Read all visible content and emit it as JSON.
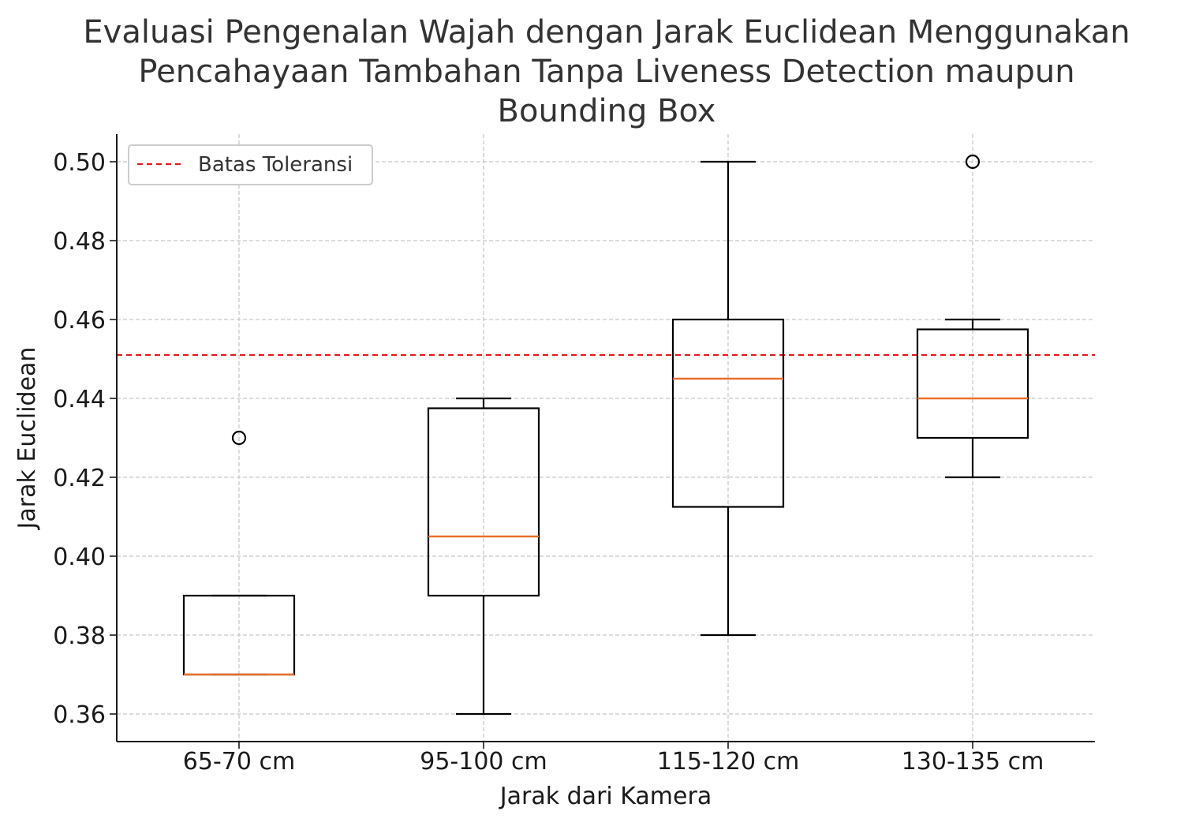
{
  "chart_data": {
    "type": "box",
    "title_lines": [
      "Evaluasi Pengenalan Wajah dengan Jarak Euclidean Menggunakan",
      "Pencahayaan Tambahan Tanpa Liveness Detection maupun",
      "Bounding Box"
    ],
    "xlabel": "Jarak dari Kamera",
    "ylabel": "Jarak Euclidean",
    "categories": [
      "65-70 cm",
      "95-100 cm",
      "115-120 cm",
      "130-135 cm"
    ],
    "boxes": [
      {
        "category": "65-70 cm",
        "whisker_low": 0.37,
        "q1": 0.37,
        "median": 0.37,
        "q3": 0.39,
        "whisker_high": 0.39,
        "outliers": [
          0.43
        ]
      },
      {
        "category": "95-100 cm",
        "whisker_low": 0.36,
        "q1": 0.39,
        "median": 0.405,
        "q3": 0.4375,
        "whisker_high": 0.44,
        "outliers": []
      },
      {
        "category": "115-120 cm",
        "whisker_low": 0.38,
        "q1": 0.4125,
        "median": 0.445,
        "q3": 0.46,
        "whisker_high": 0.5,
        "outliers": []
      },
      {
        "category": "130-135 cm",
        "whisker_low": 0.42,
        "q1": 0.43,
        "median": 0.44,
        "q3": 0.4575,
        "whisker_high": 0.46,
        "outliers": [
          0.5
        ]
      }
    ],
    "threshold": {
      "label": "Batas Toleransi",
      "value": 0.451,
      "color": "#e41a1c",
      "style": "dashed"
    },
    "ylim": [
      0.353,
      0.507
    ],
    "yticks": [
      0.36,
      0.38,
      0.4,
      0.42,
      0.44,
      0.46,
      0.48,
      0.5
    ],
    "ytick_labels": [
      "0.36",
      "0.38",
      "0.40",
      "0.42",
      "0.44",
      "0.46",
      "0.48",
      "0.50"
    ],
    "grid": true,
    "legend_position": "top-left",
    "colors": {
      "box": "#000000",
      "median": "#e8702a",
      "grid": "#c8c8c8"
    }
  }
}
